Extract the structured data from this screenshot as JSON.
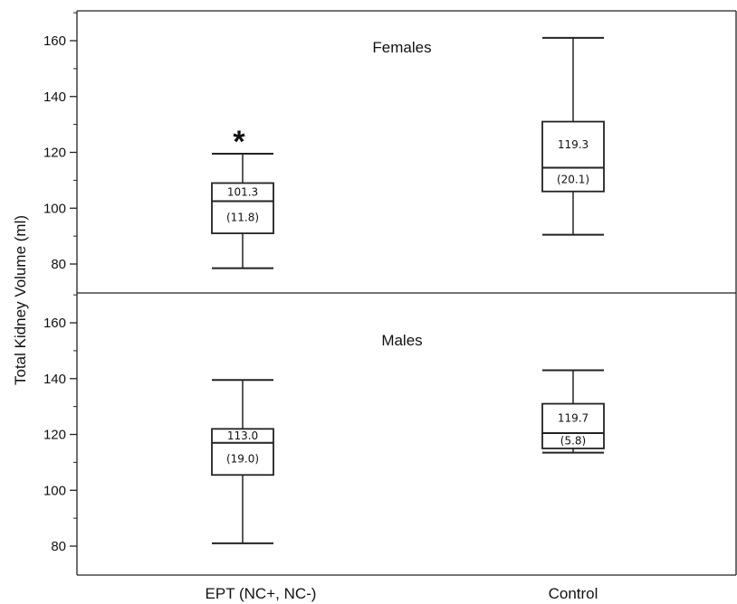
{
  "chart_data": {
    "type": "box",
    "ylabel": "Total Kidney Volume (ml)",
    "categories": [
      "EPT (NC+, NC-)",
      "Control"
    ],
    "panels": [
      {
        "title": "Females",
        "ylim": [
          70,
          170
        ],
        "yticks": [
          "80",
          "100",
          "120",
          "140",
          "160"
        ],
        "boxes": [
          {
            "category": "EPT (NC+, NC-)",
            "min": 78.5,
            "q1": 91,
            "median": 102.5,
            "q3": 109,
            "max": 119.5,
            "mean": "101.3",
            "sd": "(11.8)",
            "marker": "*"
          },
          {
            "category": "Control",
            "min": 90.5,
            "q1": 106,
            "median": 114.5,
            "q3": 131,
            "max": 161,
            "mean": "119.3",
            "sd": "(20.1)",
            "marker": ""
          }
        ]
      },
      {
        "title": "Males",
        "ylim": [
          70,
          170
        ],
        "yticks": [
          "80",
          "100",
          "120",
          "140",
          "160"
        ],
        "boxes": [
          {
            "category": "EPT (NC+, NC-)",
            "min": 81,
            "q1": 105.5,
            "median": 117,
            "q3": 122,
            "max": 139.5,
            "mean": "113.0",
            "sd": "(19.0)",
            "marker": ""
          },
          {
            "category": "Control",
            "min": 113.5,
            "q1": 115,
            "median": 120.5,
            "q3": 131,
            "max": 143,
            "mean": "119.7",
            "sd": "(5.8)",
            "marker": ""
          }
        ]
      }
    ]
  }
}
